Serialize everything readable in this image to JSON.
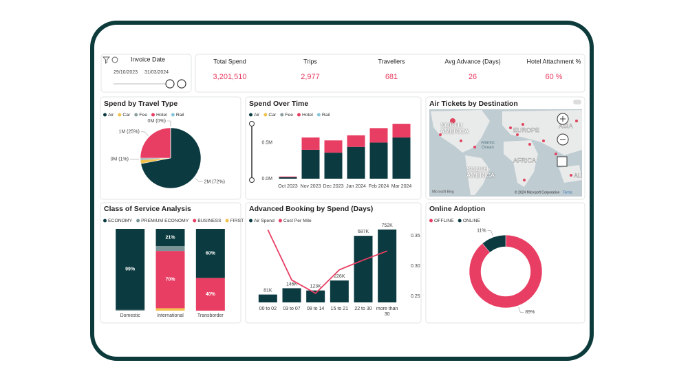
{
  "filter": {
    "title": "Invoice Date",
    "start": "29/10/2023",
    "end": "31/03/2024"
  },
  "kpis": [
    {
      "label": "Total Spend",
      "value": "3,201,510"
    },
    {
      "label": "Trips",
      "value": "2,977"
    },
    {
      "label": "Travellers",
      "value": "681"
    },
    {
      "label": "Avg Advance (Days)",
      "value": "26"
    },
    {
      "label": "Hotel Attachment %",
      "value": "60 %"
    }
  ],
  "map": {
    "title": "Air Tickets by Destination",
    "labels": [
      "NORTH AMERICA",
      "EUROPE",
      "ASIA",
      "AFRICA",
      "SOUTH AMERICA",
      "Atlantic Ocean",
      "AU"
    ],
    "attribution": "© 2024 Microsoft Corporation",
    "terms": "Terms",
    "brand": "Microsoft Bing"
  },
  "chart_data": [
    {
      "type": "pie",
      "title": "Spend by Travel Type",
      "legend": "top-left",
      "categories": [
        "Air",
        "Car",
        "Fee",
        "Hotel",
        "Rail"
      ],
      "colors": [
        "#0b3b40",
        "#f2c14e",
        "#8a9ea0",
        "#e83e63",
        "#86c5d8"
      ],
      "values": [
        72,
        2,
        1,
        25,
        0
      ],
      "value_labels": [
        "2M (72%)",
        null,
        "0M (1%)",
        "1M (25%)",
        "0M (0%)"
      ]
    },
    {
      "type": "bar",
      "stacked": true,
      "title": "Spend Over Time",
      "legend": "top-left",
      "categories": [
        "Oct 2023",
        "Nov 2023",
        "Dec 2023",
        "Jan 2024",
        "Feb 2024",
        "Mar 2024"
      ],
      "series": [
        {
          "name": "Air",
          "color": "#0b3b40",
          "values": [
            0.02,
            0.4,
            0.36,
            0.44,
            0.5,
            0.57
          ]
        },
        {
          "name": "Car",
          "color": "#f2c14e",
          "values": [
            0,
            0,
            0,
            0,
            0,
            0
          ]
        },
        {
          "name": "Fee",
          "color": "#8a9ea0",
          "values": [
            0,
            0,
            0,
            0,
            0,
            0
          ]
        },
        {
          "name": "Hotel",
          "color": "#e83e63",
          "values": [
            0.01,
            0.17,
            0.17,
            0.16,
            0.2,
            0.19
          ]
        },
        {
          "name": "Rail",
          "color": "#86c5d8",
          "values": [
            0,
            0,
            0,
            0,
            0,
            0
          ]
        }
      ],
      "ylim": [
        0,
        0.78
      ],
      "yticks": [
        {
          "value": 0,
          "label": "0.0M"
        },
        {
          "value": 0.5,
          "label": "0.5M"
        }
      ]
    },
    {
      "type": "bar",
      "stacked": true,
      "stack_order": "reverse",
      "title": "Class of Service Analysis",
      "legend": "top-left",
      "categories": [
        "Domestic",
        "International",
        "Transborder"
      ],
      "series": [
        {
          "name": "ECONOMY",
          "color": "#0b3b40",
          "values": [
            99,
            21,
            60
          ],
          "value_labels": [
            "99%",
            "21%",
            "60%"
          ]
        },
        {
          "name": "PREMIUM ECONOMY",
          "color": "#7a9396",
          "values": [
            1,
            6,
            0
          ]
        },
        {
          "name": "BUSINESS",
          "color": "#e83e63",
          "values": [
            0,
            70,
            40
          ],
          "value_labels": [
            null,
            "70%",
            "40%"
          ]
        },
        {
          "name": "FIRST",
          "color": "#f2c14e",
          "values": [
            0,
            3,
            0
          ]
        }
      ],
      "ylim": [
        0,
        100
      ]
    },
    {
      "type": "combo",
      "title": "Advanced Booking by Spend (Days)",
      "legend": "top-left",
      "categories": [
        "00 to 02",
        "03 to 07",
        "08 to 14",
        "15 to 21",
        "22 to 30",
        "more than 30"
      ],
      "series": [
        {
          "name": "Air Spend",
          "type": "bar",
          "color": "#0b3b40",
          "values": [
            81,
            146,
            123,
            226,
            687,
            752
          ],
          "value_labels": [
            "81K",
            "146K",
            "123K",
            "226K",
            "687K",
            "752K"
          ]
        },
        {
          "name": "Cost Per Mile",
          "type": "line",
          "axis": "y2",
          "color": "#e83e63",
          "values": [
            0.36,
            0.277,
            0.255,
            0.294,
            0.31,
            0.325
          ]
        }
      ],
      "ylim": [
        0,
        780
      ],
      "y2lim": [
        0.24,
        0.365
      ],
      "y2ticks": [
        0.25,
        {
          "value": 0.3,
          "label": "0.30"
        },
        0.35
      ]
    },
    {
      "type": "donut",
      "title": "Online Adoption",
      "legend": "top-left",
      "categories": [
        "OFFLINE",
        "ONLINE"
      ],
      "colors": [
        "#e83e63",
        "#0b3b40"
      ],
      "values": [
        89,
        11
      ],
      "value_labels": [
        "89%",
        "11%"
      ]
    }
  ]
}
